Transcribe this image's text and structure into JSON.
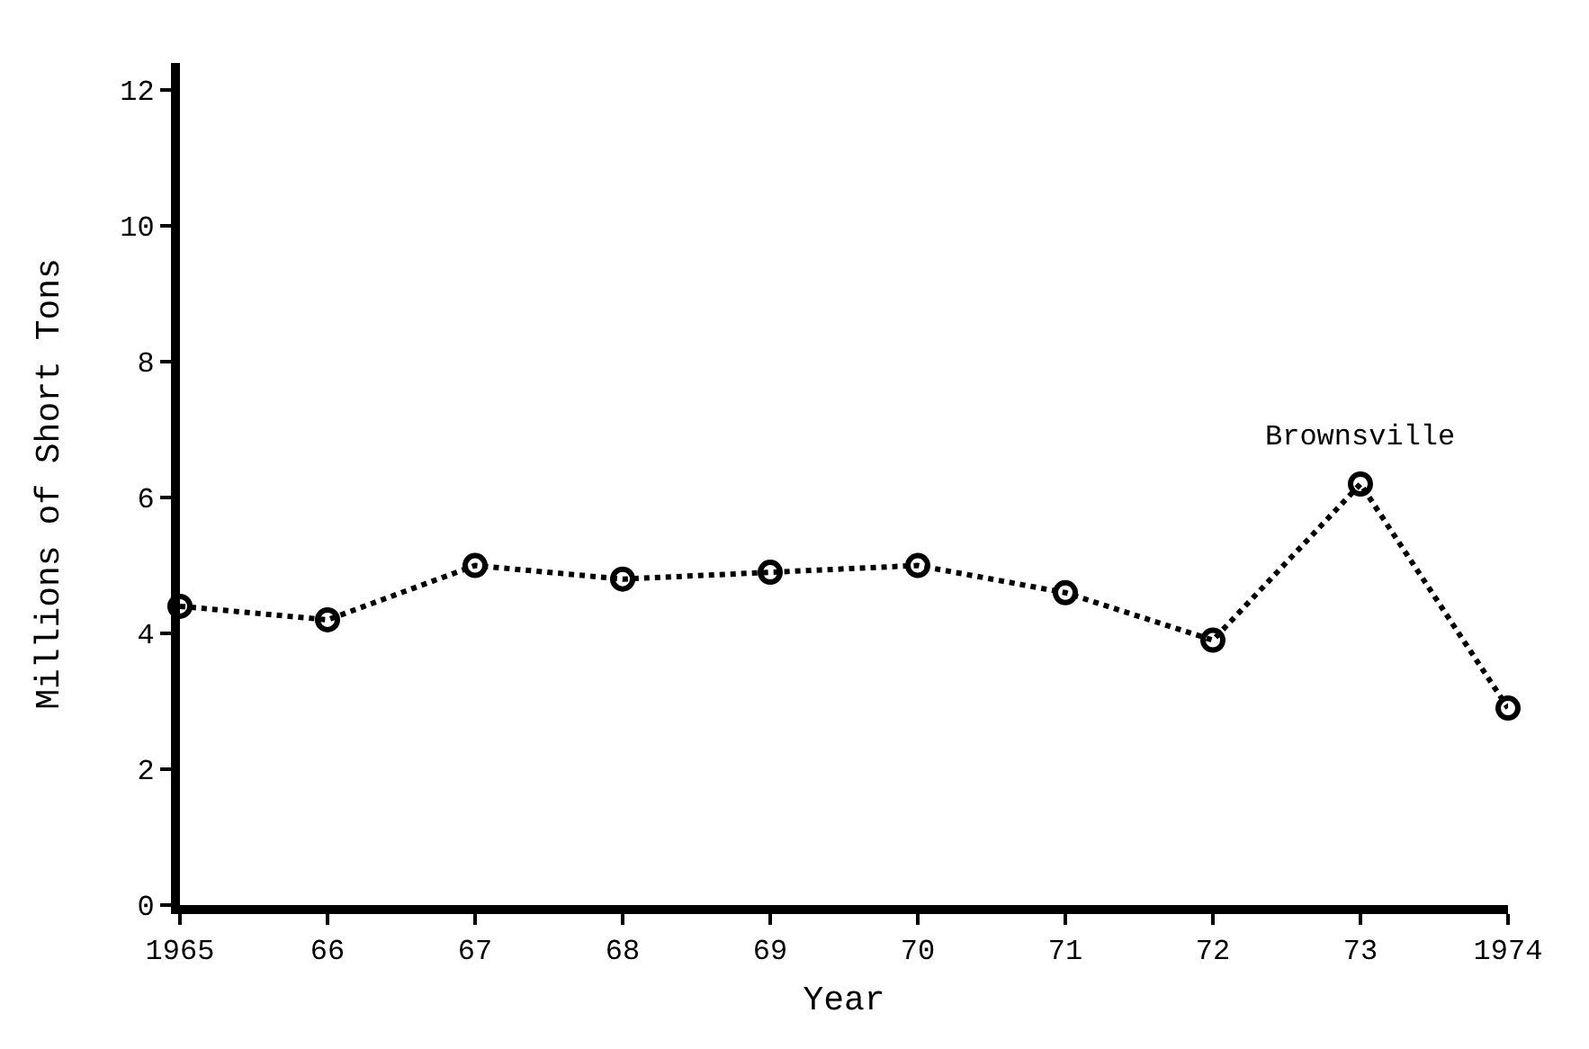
{
  "chart_data": {
    "type": "line",
    "xlabel": "Year",
    "ylabel": "Millions of Short Tons",
    "x": [
      1965,
      1966,
      1967,
      1968,
      1969,
      1970,
      1971,
      1972,
      1973,
      1974
    ],
    "series": [
      {
        "color": "#000000",
        "values": [
          4.4,
          4.2,
          5.0,
          4.8,
          4.9,
          5.0,
          4.6,
          3.9,
          6.2,
          2.9
        ]
      }
    ],
    "xlim": [
      1965,
      1974
    ],
    "xticks": [
      1965,
      {
        "value": 1966,
        "label": "66"
      },
      {
        "value": 1967,
        "label": "67"
      },
      {
        "value": 1968,
        "label": "68"
      },
      {
        "value": 1969,
        "label": "69"
      },
      {
        "value": 1970,
        "label": "70"
      },
      {
        "value": 1971,
        "label": "71"
      },
      {
        "value": 1972,
        "label": "72"
      },
      {
        "value": 1973,
        "label": "73"
      },
      1974
    ],
    "ylim": [
      0,
      12.4
    ],
    "yticks": [
      0,
      2,
      4,
      6,
      8,
      10,
      12
    ],
    "annotations": [
      {
        "text": "Brownsville",
        "x": 1973,
        "y": 6.2
      }
    ],
    "marker": "circle",
    "line_style": "dotted"
  }
}
